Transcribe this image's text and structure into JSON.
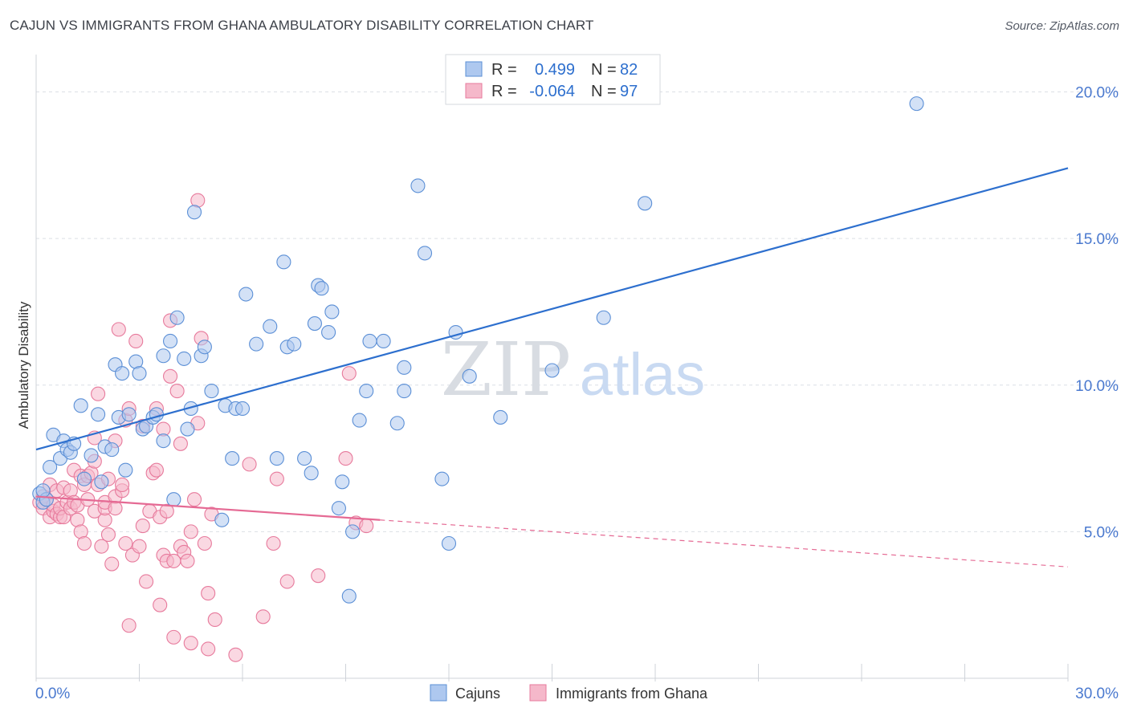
{
  "title": "CAJUN VS IMMIGRANTS FROM GHANA AMBULATORY DISABILITY CORRELATION CHART",
  "source": "Source: ZipAtlas.com",
  "watermark": {
    "zip": "ZIP",
    "atlas": "atlas"
  },
  "colors": {
    "cajuns_fill": "#aec8ef",
    "cajuns_stroke": "#5b8fd6",
    "cajuns_line": "#2d6fce",
    "ghana_fill": "#f5b8ca",
    "ghana_stroke": "#e77a9c",
    "ghana_line": "#e56a94",
    "value_text": "#2d6fce",
    "grid": "#dcdfe5"
  },
  "legend": {
    "r_label": "R =",
    "n_label": "N =",
    "cajuns": {
      "r": "0.499",
      "n": "82"
    },
    "ghana": {
      "r": "-0.064",
      "n": "97"
    }
  },
  "bottom_legend": {
    "cajuns": "Cajuns",
    "ghana": "Immigrants from Ghana"
  },
  "chart_data": {
    "type": "scatter",
    "title": "CAJUN VS IMMIGRANTS FROM GHANA AMBULATORY DISABILITY CORRELATION CHART",
    "xlabel": "",
    "ylabel": "Ambulatory Disability",
    "xlim": [
      0,
      30
    ],
    "ylim": [
      0,
      21
    ],
    "x_tick_labels": [
      "0.0%",
      "30.0%"
    ],
    "y_ticks": [
      5,
      10,
      15,
      20
    ],
    "y_tick_labels": [
      "5.0%",
      "10.0%",
      "15.0%",
      "20.0%"
    ],
    "grid": true,
    "legend_position": "top-center",
    "series": [
      {
        "name": "Cajuns",
        "r": 0.499,
        "n": 82,
        "trend": {
          "x0": 0,
          "y0": 7.8,
          "x1": 30,
          "y1": 17.4
        },
        "points": [
          [
            0.1,
            6.3
          ],
          [
            0.2,
            6.0
          ],
          [
            0.3,
            6.1
          ],
          [
            0.2,
            6.4
          ],
          [
            0.4,
            7.2
          ],
          [
            0.5,
            8.3
          ],
          [
            0.7,
            7.5
          ],
          [
            0.8,
            8.1
          ],
          [
            0.9,
            7.8
          ],
          [
            1.0,
            7.7
          ],
          [
            1.1,
            8.0
          ],
          [
            1.3,
            9.3
          ],
          [
            1.4,
            6.8
          ],
          [
            1.6,
            7.6
          ],
          [
            1.8,
            9.0
          ],
          [
            1.9,
            6.7
          ],
          [
            2.0,
            7.9
          ],
          [
            2.2,
            7.8
          ],
          [
            2.3,
            10.7
          ],
          [
            2.4,
            8.9
          ],
          [
            2.5,
            10.4
          ],
          [
            2.6,
            7.1
          ],
          [
            2.7,
            9.0
          ],
          [
            2.9,
            10.8
          ],
          [
            3.0,
            10.4
          ],
          [
            3.1,
            8.5
          ],
          [
            3.2,
            8.6
          ],
          [
            3.4,
            8.9
          ],
          [
            3.5,
            9.0
          ],
          [
            3.7,
            8.1
          ],
          [
            3.7,
            11.0
          ],
          [
            3.9,
            11.5
          ],
          [
            4.0,
            6.1
          ],
          [
            4.1,
            12.3
          ],
          [
            4.3,
            10.9
          ],
          [
            4.4,
            8.5
          ],
          [
            4.5,
            9.2
          ],
          [
            4.6,
            15.9
          ],
          [
            4.8,
            11.0
          ],
          [
            4.9,
            11.3
          ],
          [
            5.1,
            9.8
          ],
          [
            5.4,
            5.4
          ],
          [
            5.5,
            9.3
          ],
          [
            5.7,
            7.5
          ],
          [
            5.8,
            9.2
          ],
          [
            6.0,
            9.2
          ],
          [
            6.1,
            13.1
          ],
          [
            6.4,
            11.4
          ],
          [
            6.8,
            12.0
          ],
          [
            7.0,
            7.5
          ],
          [
            7.2,
            14.2
          ],
          [
            7.3,
            11.3
          ],
          [
            7.5,
            11.4
          ],
          [
            7.8,
            7.5
          ],
          [
            8.0,
            7.0
          ],
          [
            8.1,
            12.1
          ],
          [
            8.2,
            13.4
          ],
          [
            8.3,
            13.3
          ],
          [
            8.5,
            11.8
          ],
          [
            8.6,
            12.5
          ],
          [
            8.8,
            5.8
          ],
          [
            8.9,
            6.7
          ],
          [
            9.1,
            2.8
          ],
          [
            9.2,
            5.0
          ],
          [
            9.4,
            8.8
          ],
          [
            9.6,
            9.8
          ],
          [
            9.7,
            11.5
          ],
          [
            10.1,
            11.5
          ],
          [
            10.5,
            8.7
          ],
          [
            10.7,
            9.8
          ],
          [
            10.7,
            10.6
          ],
          [
            11.1,
            16.8
          ],
          [
            11.3,
            14.5
          ],
          [
            11.8,
            6.8
          ],
          [
            12.0,
            4.6
          ],
          [
            12.2,
            11.8
          ],
          [
            12.6,
            10.3
          ],
          [
            13.5,
            8.9
          ],
          [
            15.0,
            10.5
          ],
          [
            16.5,
            12.3
          ],
          [
            17.7,
            16.2
          ],
          [
            25.6,
            19.6
          ]
        ]
      },
      {
        "name": "Immigrants from Ghana",
        "r": -0.064,
        "n": 97,
        "trend": {
          "x0": 0,
          "y0": 6.2,
          "x1": 10,
          "y1": 5.4,
          "dashed_to": {
            "x": 30,
            "y": 3.8
          }
        },
        "points": [
          [
            0.1,
            6.0
          ],
          [
            0.2,
            5.8
          ],
          [
            0.2,
            6.2
          ],
          [
            0.3,
            6.1
          ],
          [
            0.4,
            6.6
          ],
          [
            0.4,
            5.5
          ],
          [
            0.5,
            5.7
          ],
          [
            0.5,
            5.9
          ],
          [
            0.6,
            5.6
          ],
          [
            0.6,
            6.4
          ],
          [
            0.7,
            5.5
          ],
          [
            0.7,
            5.8
          ],
          [
            0.8,
            6.5
          ],
          [
            0.8,
            5.5
          ],
          [
            0.9,
            6.0
          ],
          [
            1.0,
            5.8
          ],
          [
            1.0,
            6.4
          ],
          [
            1.1,
            7.1
          ],
          [
            1.1,
            6.0
          ],
          [
            1.2,
            5.4
          ],
          [
            1.2,
            5.9
          ],
          [
            1.3,
            5.0
          ],
          [
            1.3,
            6.9
          ],
          [
            1.4,
            6.6
          ],
          [
            1.4,
            4.6
          ],
          [
            1.5,
            6.1
          ],
          [
            1.5,
            6.9
          ],
          [
            1.6,
            7.0
          ],
          [
            1.7,
            5.7
          ],
          [
            1.7,
            7.4
          ],
          [
            1.7,
            8.2
          ],
          [
            1.8,
            6.6
          ],
          [
            1.8,
            9.7
          ],
          [
            1.9,
            4.5
          ],
          [
            2.0,
            5.4
          ],
          [
            2.0,
            5.8
          ],
          [
            2.0,
            6.0
          ],
          [
            2.1,
            6.8
          ],
          [
            2.1,
            4.9
          ],
          [
            2.2,
            3.9
          ],
          [
            2.3,
            6.2
          ],
          [
            2.3,
            5.8
          ],
          [
            2.3,
            8.1
          ],
          [
            2.4,
            11.9
          ],
          [
            2.5,
            6.4
          ],
          [
            2.5,
            6.6
          ],
          [
            2.6,
            4.6
          ],
          [
            2.6,
            8.8
          ],
          [
            2.7,
            9.2
          ],
          [
            2.7,
            1.8
          ],
          [
            2.8,
            4.2
          ],
          [
            2.9,
            11.5
          ],
          [
            3.0,
            4.5
          ],
          [
            3.1,
            5.2
          ],
          [
            3.1,
            8.6
          ],
          [
            3.2,
            3.3
          ],
          [
            3.3,
            5.7
          ],
          [
            3.4,
            7.0
          ],
          [
            3.5,
            9.2
          ],
          [
            3.5,
            7.1
          ],
          [
            3.6,
            5.5
          ],
          [
            3.6,
            2.5
          ],
          [
            3.7,
            4.2
          ],
          [
            3.7,
            8.5
          ],
          [
            3.8,
            5.7
          ],
          [
            3.8,
            4.0
          ],
          [
            3.9,
            12.2
          ],
          [
            3.9,
            10.3
          ],
          [
            4.0,
            4.0
          ],
          [
            4.0,
            1.4
          ],
          [
            4.1,
            9.8
          ],
          [
            4.2,
            8.0
          ],
          [
            4.2,
            4.5
          ],
          [
            4.3,
            4.3
          ],
          [
            4.4,
            4.0
          ],
          [
            4.5,
            1.2
          ],
          [
            4.5,
            5.0
          ],
          [
            4.6,
            6.1
          ],
          [
            4.7,
            8.7
          ],
          [
            4.7,
            16.3
          ],
          [
            4.8,
            11.6
          ],
          [
            4.9,
            4.6
          ],
          [
            5.0,
            2.9
          ],
          [
            5.0,
            1.0
          ],
          [
            5.1,
            5.6
          ],
          [
            5.2,
            2.0
          ],
          [
            5.8,
            0.8
          ],
          [
            6.2,
            7.3
          ],
          [
            6.6,
            2.1
          ],
          [
            6.9,
            4.6
          ],
          [
            7.0,
            6.8
          ],
          [
            7.3,
            3.3
          ],
          [
            8.2,
            3.5
          ],
          [
            9.0,
            7.5
          ],
          [
            9.1,
            10.4
          ],
          [
            9.3,
            5.3
          ],
          [
            9.6,
            5.2
          ]
        ]
      }
    ]
  }
}
